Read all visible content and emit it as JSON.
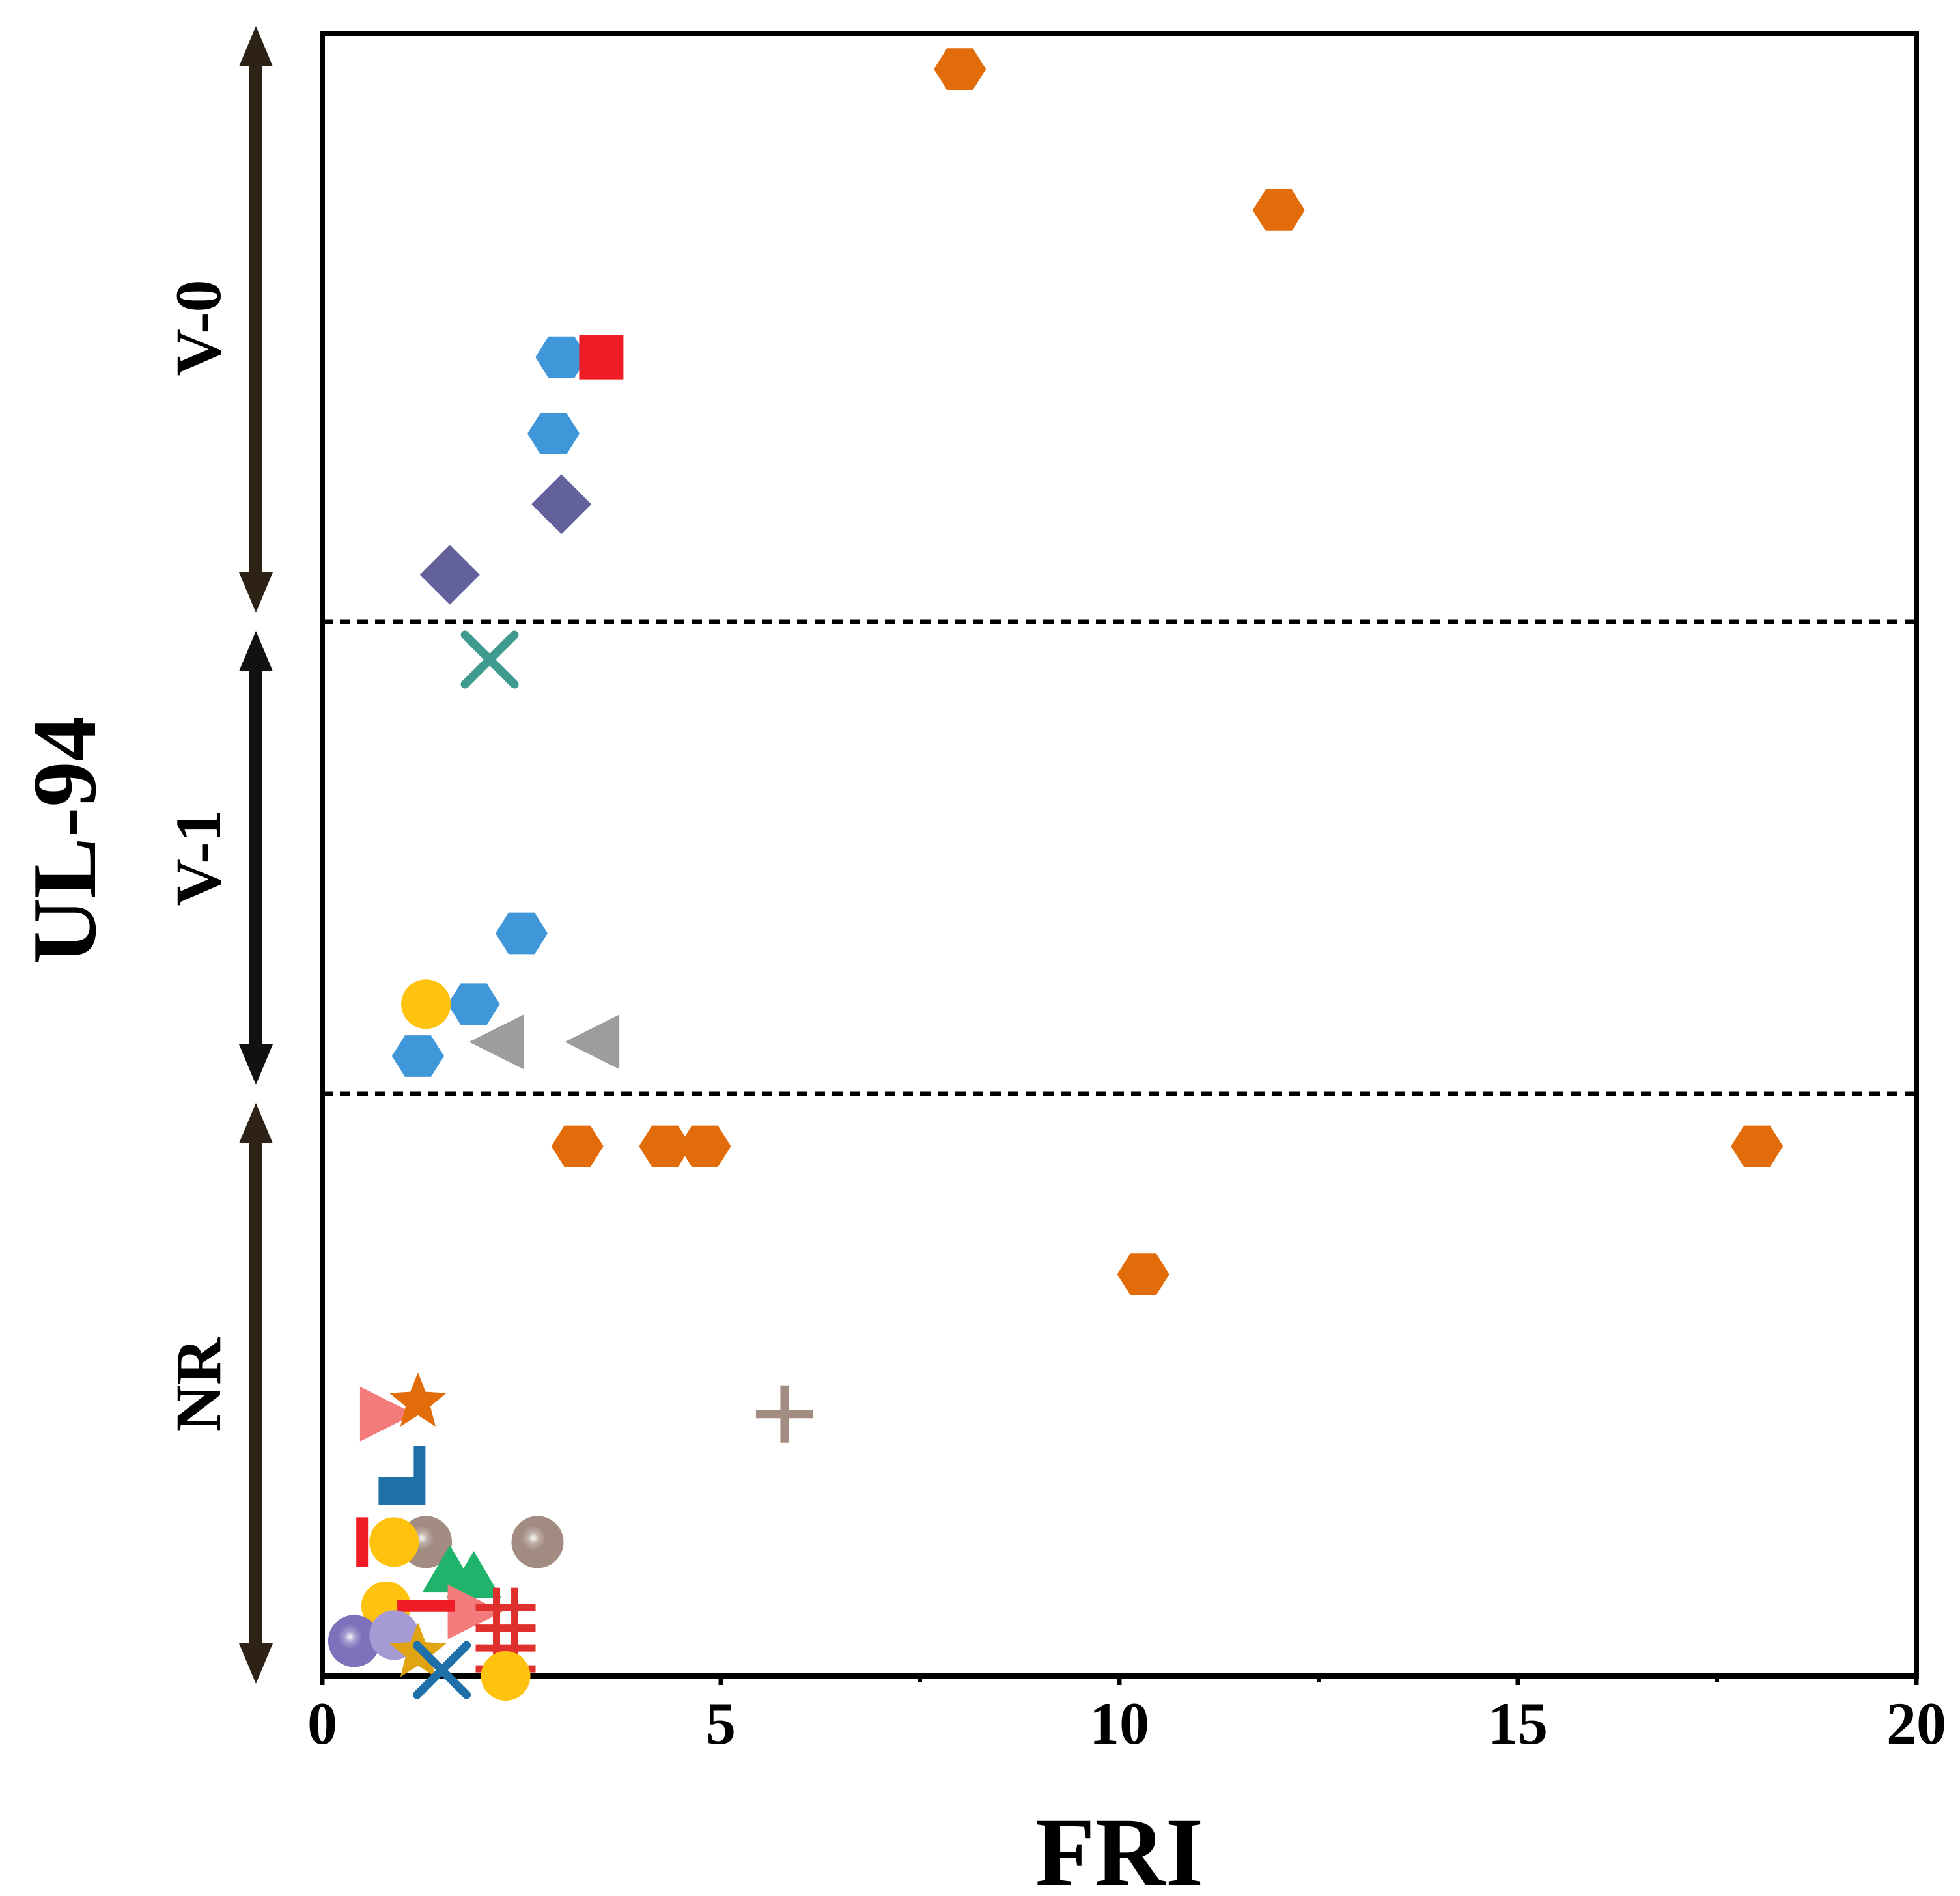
{
  "chart_data": {
    "type": "scatter",
    "title": "",
    "xlabel": "FRI",
    "ylabel": "UL-94",
    "xlim": [
      0,
      20
    ],
    "xticks": [
      0,
      5,
      10,
      15,
      20
    ],
    "grid": false,
    "y_categories": [
      {
        "name": "V-0",
        "color": "#2e2217"
      },
      {
        "name": "V-1",
        "color": "#111111"
      },
      {
        "name": "NR",
        "color": "#2e2217"
      }
    ],
    "series": [
      {
        "marker": "hexagon",
        "color": "#e36c0a",
        "points": [
          {
            "x": 8.0,
            "level": "V-0",
            "offset": 0.94
          },
          {
            "x": 12.0,
            "level": "V-0",
            "offset": 0.7
          },
          {
            "x": 3.2,
            "level": "NR",
            "offset": 0.91
          },
          {
            "x": 4.3,
            "level": "NR",
            "offset": 0.91
          },
          {
            "x": 4.8,
            "level": "NR",
            "offset": 0.91
          },
          {
            "x": 18.0,
            "level": "NR",
            "offset": 0.91
          },
          {
            "x": 10.3,
            "level": "NR",
            "offset": 0.69
          }
        ]
      },
      {
        "marker": "hexagon",
        "color": "#3f97d9",
        "points": [
          {
            "x": 3.0,
            "level": "V-0",
            "offset": 0.45
          },
          {
            "x": 2.9,
            "level": "V-0",
            "offset": 0.32
          },
          {
            "x": 2.5,
            "level": "V-1",
            "offset": 0.34
          },
          {
            "x": 1.9,
            "level": "V-1",
            "offset": 0.19
          },
          {
            "x": 1.2,
            "level": "V-1",
            "offset": 0.08
          }
        ]
      },
      {
        "marker": "square",
        "color": "#ee1c24",
        "points": [
          {
            "x": 3.5,
            "level": "V-0",
            "offset": 0.45
          }
        ]
      },
      {
        "marker": "diamond",
        "color": "#62619b",
        "points": [
          {
            "x": 3.0,
            "level": "V-0",
            "offset": 0.2
          },
          {
            "x": 1.6,
            "level": "V-0",
            "offset": 0.08
          }
        ]
      },
      {
        "marker": "x",
        "color": "#3f9a90",
        "points": [
          {
            "x": 2.1,
            "level": "V-1",
            "offset": 0.92
          }
        ]
      },
      {
        "marker": "circle",
        "color": "#ffc20e",
        "points": [
          {
            "x": 1.3,
            "level": "V-1",
            "offset": 0.19
          }
        ]
      },
      {
        "marker": "triangle-left",
        "color": "#9d9d9d",
        "points": [
          {
            "x": 2.2,
            "level": "V-1",
            "offset": 0.11
          },
          {
            "x": 3.4,
            "level": "V-1",
            "offset": 0.11
          }
        ]
      },
      {
        "marker": "plus",
        "color": "#a28b81",
        "points": [
          {
            "x": 5.8,
            "level": "NR",
            "offset": 0.45
          }
        ]
      },
      {
        "marker": "triangle-right",
        "color": "#f47b7b",
        "points": [
          {
            "x": 0.8,
            "level": "NR",
            "offset": 0.45
          }
        ]
      },
      {
        "marker": "star",
        "color": "#e36c0a",
        "points": [
          {
            "x": 1.2,
            "level": "NR",
            "offset": 0.47
          }
        ]
      },
      {
        "marker": "l-shape",
        "color": "#1f6fa8",
        "points": [
          {
            "x": 1.0,
            "level": "NR",
            "offset": 0.33
          }
        ]
      },
      {
        "marker": "sphere",
        "color": "#a28b81",
        "points": [
          {
            "x": 1.3,
            "level": "NR",
            "offset": 0.23
          },
          {
            "x": 2.7,
            "level": "NR",
            "offset": 0.23
          }
        ]
      },
      {
        "marker": "circle",
        "color": "#ffc20e",
        "points": [
          {
            "x": 0.9,
            "level": "NR",
            "offset": 0.23
          },
          {
            "x": 0.8,
            "level": "NR",
            "offset": 0.12
          }
        ]
      },
      {
        "marker": "vbar",
        "color": "#ee1c24",
        "points": [
          {
            "x": 0.5,
            "level": "NR",
            "offset": 0.23
          }
        ]
      },
      {
        "marker": "triangle-up",
        "color": "#1fb36b",
        "points": [
          {
            "x": 1.6,
            "level": "NR",
            "offset": 0.18
          },
          {
            "x": 1.9,
            "level": "NR",
            "offset": 0.17
          }
        ]
      },
      {
        "marker": "triangle-right",
        "color": "#f47b7b",
        "points": [
          {
            "x": 1.9,
            "level": "NR",
            "offset": 0.11
          }
        ]
      },
      {
        "marker": "minus",
        "color": "#ee1c24",
        "points": [
          {
            "x": 1.3,
            "level": "NR",
            "offset": 0.12
          }
        ]
      },
      {
        "marker": "hash",
        "color": "#e0302e",
        "points": [
          {
            "x": 2.3,
            "level": "NR",
            "offset": 0.1
          },
          {
            "x": 2.3,
            "level": "NR",
            "offset": 0.03
          }
        ]
      },
      {
        "marker": "sphere",
        "color": "#7f70bb",
        "points": [
          {
            "x": 0.4,
            "level": "NR",
            "offset": 0.06
          }
        ]
      },
      {
        "marker": "circle",
        "color": "#a59ad3",
        "points": [
          {
            "x": 0.9,
            "level": "NR",
            "offset": 0.07
          }
        ]
      },
      {
        "marker": "star",
        "color": "#e0a412",
        "points": [
          {
            "x": 1.2,
            "level": "NR",
            "offset": 0.04
          }
        ]
      },
      {
        "marker": "x",
        "color": "#1f6fa8",
        "points": [
          {
            "x": 1.5,
            "level": "NR",
            "offset": 0.01
          }
        ]
      },
      {
        "marker": "circle",
        "color": "#ffc20e",
        "points": [
          {
            "x": 2.3,
            "level": "NR",
            "offset": 0.0
          }
        ]
      }
    ]
  }
}
